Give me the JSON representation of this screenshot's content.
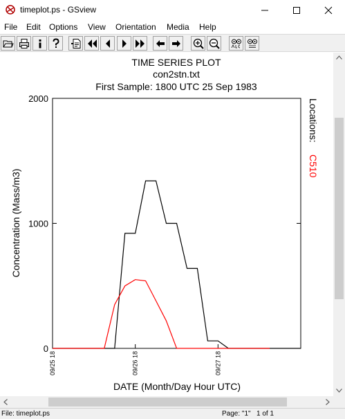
{
  "window": {
    "title": "timeplot.ps - GSview"
  },
  "menu": [
    "File",
    "Edit",
    "Options",
    "View",
    "Orientation",
    "Media",
    "Help"
  ],
  "toolbar": [
    "open",
    "print",
    "info",
    "help",
    "goto-page",
    "first-page",
    "prev-page",
    "next-page",
    "last-page",
    "back",
    "forward",
    "zoom-in",
    "zoom-out",
    "find",
    "find-next"
  ],
  "colors": {
    "series_black": "#000000",
    "series_red": "#ff0000",
    "toolbar_bg": "#f0f0f0"
  },
  "status": {
    "file": "File: timeplot.ps",
    "page": "Page: \"1\"",
    "count": "1 of 1"
  },
  "chart_data": {
    "type": "line",
    "title": "TIME SERIES PLOT",
    "subtitle_file": "con2stn.txt",
    "subtitle_sample": "First Sample: 1800 UTC 25 Sep 1983",
    "xlabel": "DATE (Month/Day Hour UTC)",
    "ylabel": "Concentration (Mass/m3)",
    "legend_title": "Locations:",
    "legend_entries": [
      {
        "label": "C510",
        "color": "#ff0000"
      }
    ],
    "ylim": [
      0,
      2000
    ],
    "y_ticks": [
      0,
      1000,
      2000
    ],
    "x_unit": "hours since 09/25 18 UTC",
    "xlim": [
      0,
      72
    ],
    "x_ticks": [
      {
        "x": 0,
        "label": "09/25 18"
      },
      {
        "x": 24,
        "label": "09/26 18"
      },
      {
        "x": 48,
        "label": "09/27 18"
      }
    ],
    "series": [
      {
        "color": "#000000",
        "x": [
          0,
          18,
          21,
          24,
          27,
          30,
          33,
          36,
          39,
          42,
          45,
          48,
          51,
          54,
          57,
          60,
          63,
          66,
          69,
          72
        ],
        "values": [
          0,
          0,
          920,
          920,
          1340,
          1340,
          1000,
          1000,
          640,
          640,
          60,
          60,
          0,
          0,
          0,
          0,
          0,
          0,
          0,
          0
        ]
      },
      {
        "color": "#ff0000",
        "x": [
          0,
          15,
          18,
          21,
          24,
          27,
          30,
          33,
          36,
          39,
          42,
          45,
          48,
          51,
          54,
          57,
          60,
          63
        ],
        "values": [
          0,
          0,
          350,
          500,
          550,
          540,
          380,
          220,
          0,
          0,
          0,
          0,
          0,
          0,
          0,
          0,
          0,
          0
        ]
      }
    ]
  }
}
